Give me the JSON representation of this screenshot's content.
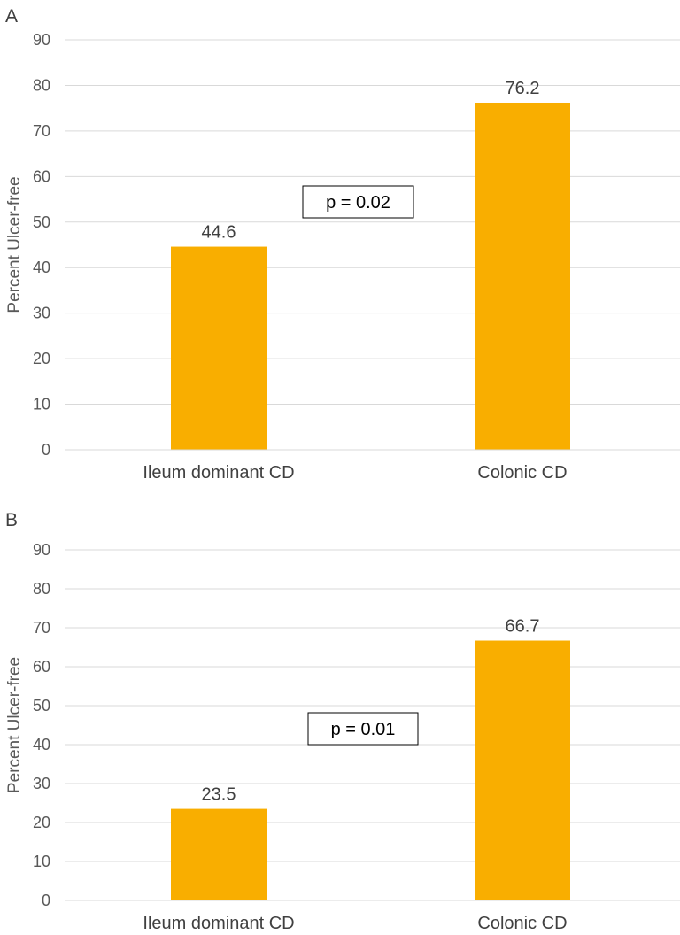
{
  "chart_data": [
    {
      "type": "bar",
      "panel_label": "A",
      "categories": [
        "Ileum dominant CD",
        "Colonic CD"
      ],
      "values": [
        44.6,
        76.2
      ],
      "data_labels": [
        "44.6",
        "76.2"
      ],
      "ylabel": "Percent Ulcer-free",
      "ylim": [
        0,
        90
      ],
      "yticks": [
        0,
        10,
        20,
        30,
        40,
        50,
        60,
        70,
        80,
        90
      ],
      "grid": true,
      "annotation": "p = 0.02",
      "bar_color": "#F9AE00"
    },
    {
      "type": "bar",
      "panel_label": "B",
      "categories": [
        "Ileum dominant CD",
        "Colonic CD"
      ],
      "values": [
        23.5,
        66.7
      ],
      "data_labels": [
        "23.5",
        "66.7"
      ],
      "ylabel": "Percent Ulcer-free",
      "ylim": [
        0,
        90
      ],
      "yticks": [
        0,
        10,
        20,
        30,
        40,
        50,
        60,
        70,
        80,
        90
      ],
      "grid": true,
      "annotation": "p = 0.01",
      "bar_color": "#F9AE00"
    }
  ]
}
